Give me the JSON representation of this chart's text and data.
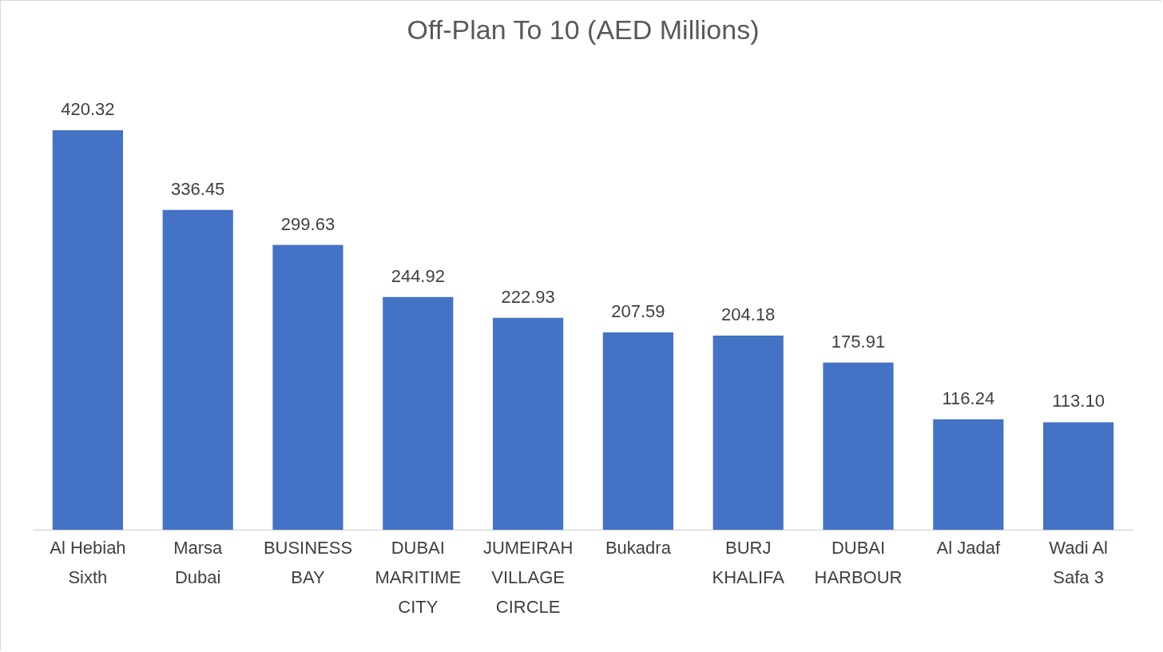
{
  "chart_data": {
    "type": "bar",
    "title": "Off-Plan To 10 (AED Millions)",
    "categories": [
      "Al Hebiah Sixth",
      "Marsa Dubai",
      "BUSINESS BAY",
      "DUBAI MARITIME CITY",
      "JUMEIRAH VILLAGE CIRCLE",
      "Bukadra",
      "BURJ KHALIFA",
      "DUBAI HARBOUR",
      "Al Jadaf",
      "Wadi Al Safa 3"
    ],
    "values": [
      420.32,
      336.45,
      299.63,
      244.92,
      222.93,
      207.59,
      204.18,
      175.91,
      116.24,
      113.1
    ],
    "value_labels": [
      "420.32",
      "336.45",
      "299.63",
      "244.92",
      "222.93",
      "207.59",
      "204.18",
      "175.91",
      "116.24",
      "113.10"
    ],
    "color": "#4472c4"
  }
}
